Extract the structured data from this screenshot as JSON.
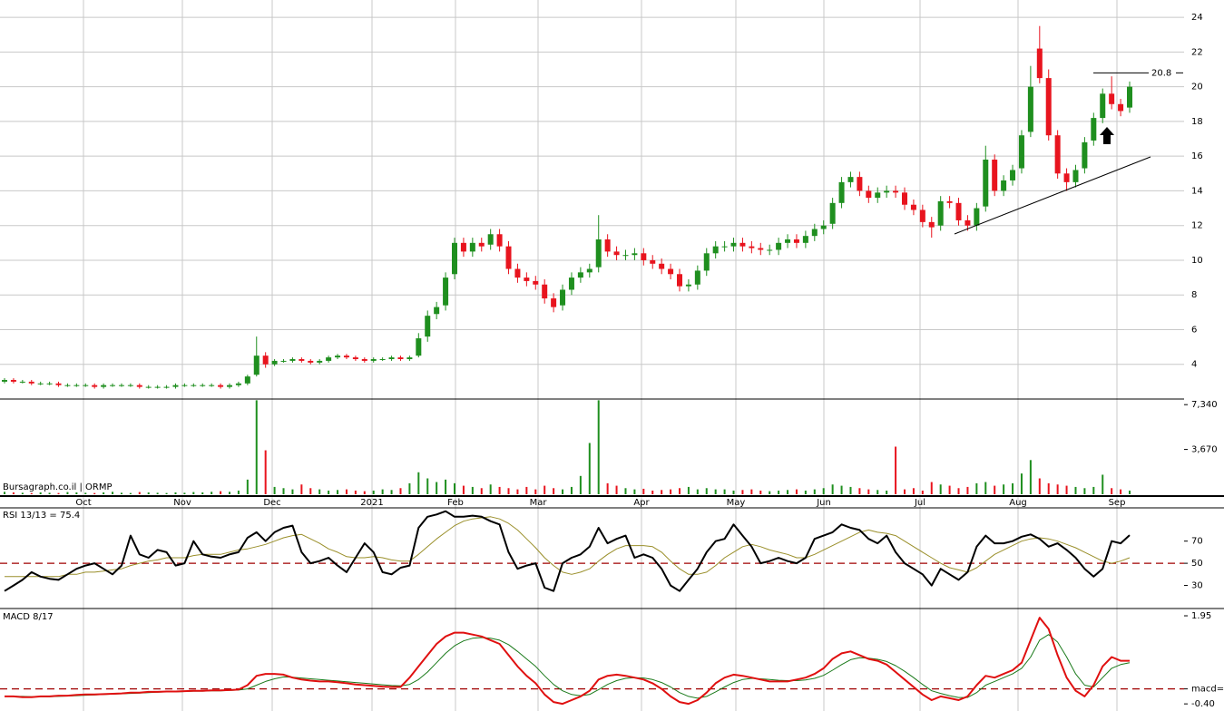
{
  "chart_data": [
    {
      "type": "candlestick",
      "x_labels": [
        "Oct",
        "Nov",
        "Dec",
        "2021",
        "Feb",
        "Mar",
        "Apr",
        "May",
        "Jun",
        "Jul",
        "Aug",
        "Sep"
      ],
      "up_color": "#1f8f1f",
      "down_color": "#e8141e",
      "open": [
        3.0,
        3.1,
        3.0,
        3.0,
        2.9,
        2.9,
        2.9,
        2.8,
        2.8,
        2.8,
        2.8,
        2.7,
        2.8,
        2.8,
        2.8,
        2.8,
        2.7,
        2.7,
        2.7,
        2.7,
        2.8,
        2.8,
        2.8,
        2.8,
        2.8,
        2.7,
        2.8,
        2.9,
        3.4,
        4.5,
        4.0,
        4.2,
        4.2,
        4.3,
        4.2,
        4.1,
        4.2,
        4.4,
        4.5,
        4.4,
        4.3,
        4.2,
        4.3,
        4.3,
        4.4,
        4.3,
        4.5,
        5.6,
        6.9,
        7.4,
        9.2,
        11.0,
        10.5,
        11.0,
        10.9,
        11.5,
        10.8,
        9.5,
        9.0,
        8.8,
        8.6,
        7.8,
        7.4,
        8.3,
        9.0,
        9.3,
        9.6,
        11.2,
        10.5,
        10.3,
        10.3,
        10.4,
        10.0,
        9.8,
        9.5,
        9.2,
        8.5,
        8.6,
        9.4,
        10.4,
        10.8,
        10.8,
        11.0,
        10.8,
        10.7,
        10.6,
        10.6,
        11.0,
        11.2,
        11.0,
        11.4,
        11.8,
        12.1,
        13.3,
        14.5,
        14.8,
        14.0,
        13.6,
        13.9,
        14.0,
        13.9,
        13.2,
        12.9,
        12.2,
        12.0,
        13.4,
        13.3,
        12.3,
        12.0,
        13.1,
        15.8,
        14.0,
        14.6,
        15.3,
        17.4,
        22.2,
        20.5,
        17.2,
        15.0,
        14.5,
        15.3,
        16.9,
        18.2,
        19.6,
        19.0,
        18.8
      ],
      "high": [
        3.2,
        3.2,
        3.1,
        3.1,
        3.0,
        3.0,
        3.0,
        2.9,
        2.9,
        2.9,
        2.9,
        2.9,
        2.9,
        2.9,
        2.9,
        2.9,
        2.8,
        2.8,
        2.8,
        2.9,
        2.9,
        2.9,
        2.9,
        2.9,
        2.9,
        2.9,
        3.0,
        3.4,
        5.6,
        4.7,
        4.3,
        4.3,
        4.4,
        4.4,
        4.3,
        4.3,
        4.5,
        4.6,
        4.6,
        4.5,
        4.4,
        4.4,
        4.4,
        4.5,
        4.5,
        4.5,
        5.8,
        7.1,
        7.6,
        9.3,
        11.3,
        11.3,
        11.3,
        11.3,
        11.8,
        11.8,
        11.1,
        9.8,
        9.3,
        9.1,
        8.9,
        8.1,
        8.6,
        9.3,
        9.6,
        9.8,
        12.6,
        11.5,
        10.8,
        10.6,
        10.7,
        10.7,
        10.3,
        10.1,
        9.8,
        9.5,
        8.9,
        9.7,
        10.7,
        11.1,
        11.1,
        11.3,
        11.3,
        11.1,
        11.0,
        10.9,
        11.3,
        11.5,
        11.5,
        11.7,
        12.1,
        12.3,
        13.6,
        14.8,
        15.1,
        15.1,
        14.3,
        14.2,
        14.3,
        14.3,
        14.2,
        13.5,
        13.2,
        12.5,
        13.7,
        13.7,
        13.6,
        12.6,
        13.3,
        16.6,
        16.1,
        14.9,
        15.5,
        17.5,
        21.2,
        23.5,
        21.0,
        17.5,
        15.3,
        15.5,
        17.1,
        18.5,
        19.9,
        20.6,
        19.3,
        20.3
      ],
      "low": [
        2.9,
        2.9,
        2.9,
        2.8,
        2.8,
        2.8,
        2.7,
        2.7,
        2.7,
        2.7,
        2.6,
        2.6,
        2.7,
        2.7,
        2.7,
        2.6,
        2.6,
        2.6,
        2.6,
        2.6,
        2.7,
        2.7,
        2.7,
        2.7,
        2.6,
        2.6,
        2.7,
        2.8,
        3.3,
        3.8,
        3.9,
        4.1,
        4.1,
        4.1,
        4.0,
        4.0,
        4.1,
        4.3,
        4.3,
        4.2,
        4.1,
        4.1,
        4.2,
        4.2,
        4.2,
        4.2,
        4.4,
        5.3,
        6.6,
        7.1,
        8.9,
        10.2,
        10.2,
        10.5,
        10.6,
        10.5,
        9.2,
        8.7,
        8.5,
        8.3,
        7.5,
        7.0,
        7.1,
        8.0,
        8.7,
        9.0,
        9.3,
        10.2,
        10.0,
        10.0,
        10.0,
        9.7,
        9.5,
        9.2,
        8.9,
        8.2,
        8.2,
        8.3,
        9.1,
        10.1,
        10.5,
        10.5,
        10.5,
        10.4,
        10.3,
        10.3,
        10.3,
        10.7,
        10.7,
        10.7,
        11.1,
        11.5,
        11.8,
        13.0,
        14.2,
        13.7,
        13.3,
        13.3,
        13.6,
        13.6,
        12.9,
        12.6,
        11.9,
        11.3,
        11.7,
        13.0,
        12.0,
        11.7,
        11.7,
        12.8,
        13.7,
        13.7,
        14.3,
        15.0,
        17.1,
        20.2,
        16.9,
        14.7,
        14.0,
        14.2,
        15.0,
        16.6,
        17.9,
        18.7,
        18.3,
        18.5
      ],
      "close": [
        3.1,
        3.0,
        3.0,
        2.9,
        2.9,
        2.9,
        2.8,
        2.8,
        2.8,
        2.8,
        2.7,
        2.8,
        2.8,
        2.8,
        2.8,
        2.7,
        2.7,
        2.7,
        2.7,
        2.8,
        2.8,
        2.8,
        2.8,
        2.8,
        2.7,
        2.8,
        2.9,
        3.3,
        4.5,
        4.0,
        4.2,
        4.2,
        4.3,
        4.2,
        4.1,
        4.2,
        4.4,
        4.5,
        4.4,
        4.3,
        4.2,
        4.3,
        4.3,
        4.4,
        4.3,
        4.4,
        5.5,
        6.8,
        7.3,
        9.0,
        11.0,
        10.5,
        11.0,
        10.8,
        11.5,
        10.8,
        9.5,
        9.0,
        8.8,
        8.6,
        7.8,
        7.3,
        8.3,
        9.0,
        9.3,
        9.5,
        11.2,
        10.5,
        10.3,
        10.3,
        10.4,
        10.0,
        9.8,
        9.5,
        9.2,
        8.5,
        8.6,
        9.4,
        10.4,
        10.8,
        10.8,
        11.0,
        10.8,
        10.7,
        10.6,
        10.6,
        11.0,
        11.2,
        11.0,
        11.4,
        11.8,
        12.0,
        13.3,
        14.5,
        14.8,
        14.0,
        13.6,
        13.9,
        14.0,
        13.9,
        13.2,
        12.9,
        12.2,
        11.9,
        13.4,
        13.3,
        12.3,
        12.0,
        13.0,
        15.8,
        14.0,
        14.6,
        15.2,
        17.2,
        20.0,
        20.5,
        17.2,
        15.0,
        14.5,
        15.2,
        16.8,
        18.2,
        19.6,
        19.0,
        18.6,
        20.0
      ],
      "ylim": [
        2,
        25
      ],
      "yticks": [
        4,
        6,
        8,
        10,
        12,
        14,
        16,
        18,
        20,
        22,
        24
      ],
      "grid": true,
      "resistance_line": 20.8
    },
    {
      "type": "bar",
      "title": "Bursagraph.co.il | ORMP",
      "values": [
        200,
        150,
        120,
        100,
        150,
        120,
        100,
        180,
        150,
        120,
        100,
        150,
        200,
        120,
        100,
        180,
        150,
        120,
        100,
        150,
        120,
        180,
        150,
        200,
        250,
        200,
        300,
        1200,
        7700,
        3600,
        600,
        500,
        400,
        800,
        500,
        400,
        300,
        350,
        400,
        300,
        250,
        300,
        400,
        350,
        500,
        900,
        1800,
        1300,
        1000,
        1200,
        900,
        700,
        600,
        500,
        800,
        600,
        500,
        400,
        600,
        400,
        700,
        500,
        400,
        600,
        1500,
        4200,
        7700,
        900,
        700,
        500,
        400,
        450,
        300,
        350,
        400,
        500,
        600,
        400,
        500,
        400,
        400,
        300,
        350,
        400,
        300,
        250,
        300,
        350,
        400,
        300,
        400,
        500,
        800,
        700,
        600,
        500,
        400,
        350,
        300,
        3900,
        400,
        500,
        300,
        1000,
        800,
        700,
        500,
        600,
        900,
        1000,
        700,
        800,
        900,
        1700,
        2800,
        1300,
        900,
        800,
        700,
        600,
        500,
        600,
        1600,
        500,
        400,
        300
      ],
      "ylim": [
        0,
        7800
      ],
      "yticks": [
        {
          "value": 3670,
          "label": "3,670"
        },
        {
          "value": 7340,
          "label": "7,340"
        }
      ]
    },
    {
      "type": "line",
      "title": "RSI 13/13 = 75.4",
      "series": [
        {
          "color": "#000000",
          "values": [
            25,
            30,
            35,
            42,
            38,
            36,
            35,
            40,
            45,
            48,
            50,
            45,
            40,
            48,
            75,
            58,
            55,
            62,
            60,
            48,
            50,
            70,
            58,
            56,
            55,
            58,
            60,
            73,
            78,
            70,
            78,
            82,
            84,
            60,
            50,
            52,
            55,
            48,
            42,
            55,
            68,
            60,
            42,
            40,
            46,
            48,
            82,
            92,
            94,
            97,
            92,
            92,
            93,
            92,
            88,
            85,
            60,
            45,
            48,
            50,
            28,
            25,
            50,
            55,
            58,
            65,
            82,
            68,
            72,
            75,
            55,
            58,
            55,
            45,
            30,
            25,
            35,
            45,
            60,
            70,
            72,
            85,
            75,
            65,
            50,
            52,
            55,
            52,
            50,
            55,
            72,
            75,
            78,
            85,
            82,
            80,
            72,
            68,
            75,
            60,
            50,
            45,
            40,
            30,
            45,
            40,
            35,
            42,
            65,
            75,
            68,
            68,
            70,
            74,
            76,
            72,
            65,
            68,
            62,
            55,
            45,
            38,
            45,
            70,
            68,
            75.4
          ]
        },
        {
          "color": "#9a8f2a",
          "values": [
            38,
            38,
            38,
            38,
            38,
            38,
            38,
            40,
            40,
            42,
            42,
            43,
            44,
            45,
            48,
            50,
            52,
            53,
            55,
            55,
            55,
            57,
            58,
            58,
            58,
            60,
            62,
            63,
            65,
            67,
            70,
            73,
            75,
            76,
            72,
            68,
            63,
            60,
            56,
            55,
            55,
            56,
            55,
            53,
            52,
            52,
            58,
            65,
            72,
            78,
            84,
            88,
            90,
            91,
            92,
            90,
            86,
            80,
            72,
            64,
            55,
            48,
            42,
            40,
            42,
            45,
            52,
            58,
            63,
            66,
            66,
            66,
            65,
            60,
            52,
            45,
            40,
            40,
            42,
            48,
            55,
            60,
            65,
            67,
            65,
            62,
            60,
            58,
            55,
            55,
            58,
            62,
            66,
            70,
            74,
            78,
            80,
            78,
            77,
            75,
            70,
            65,
            60,
            55,
            50,
            46,
            44,
            42,
            46,
            52,
            58,
            62,
            66,
            70,
            72,
            73,
            72,
            70,
            67,
            64,
            60,
            56,
            52,
            50,
            52,
            55
          ]
        }
      ],
      "ylim": [
        10,
        100
      ],
      "yticks": [
        30,
        50,
        70
      ],
      "reference_line": 50
    },
    {
      "type": "line",
      "title": "MACD 8/17",
      "series": [
        {
          "color": "#e01010",
          "values": [
            -0.2,
            -0.2,
            -0.22,
            -0.22,
            -0.2,
            -0.2,
            -0.18,
            -0.18,
            -0.16,
            -0.15,
            -0.15,
            -0.14,
            -0.13,
            -0.12,
            -0.1,
            -0.1,
            -0.08,
            -0.08,
            -0.07,
            -0.07,
            -0.06,
            -0.05,
            -0.05,
            -0.04,
            -0.04,
            -0.03,
            -0.02,
            0.1,
            0.35,
            0.4,
            0.4,
            0.38,
            0.3,
            0.25,
            0.22,
            0.2,
            0.2,
            0.18,
            0.15,
            0.12,
            0.1,
            0.08,
            0.06,
            0.05,
            0.05,
            0.3,
            0.6,
            0.9,
            1.2,
            1.4,
            1.5,
            1.5,
            1.45,
            1.4,
            1.3,
            1.2,
            0.9,
            0.6,
            0.35,
            0.15,
            -0.15,
            -0.35,
            -0.4,
            -0.3,
            -0.2,
            -0.05,
            0.25,
            0.35,
            0.38,
            0.35,
            0.3,
            0.25,
            0.15,
            0.0,
            -0.2,
            -0.35,
            -0.4,
            -0.3,
            -0.1,
            0.15,
            0.3,
            0.38,
            0.35,
            0.3,
            0.25,
            0.2,
            0.2,
            0.2,
            0.25,
            0.3,
            0.4,
            0.55,
            0.8,
            0.95,
            1.0,
            0.9,
            0.8,
            0.75,
            0.65,
            0.45,
            0.25,
            0.05,
            -0.15,
            -0.3,
            -0.2,
            -0.25,
            -0.3,
            -0.2,
            0.1,
            0.35,
            0.3,
            0.4,
            0.5,
            0.7,
            1.3,
            1.9,
            1.6,
            0.9,
            0.3,
            -0.05,
            -0.2,
            0.1,
            0.6,
            0.85,
            0.75,
            0.75
          ]
        },
        {
          "color": "#1a7a1a",
          "values": [
            -0.2,
            -0.2,
            -0.2,
            -0.21,
            -0.21,
            -0.21,
            -0.2,
            -0.19,
            -0.18,
            -0.17,
            -0.16,
            -0.15,
            -0.14,
            -0.13,
            -0.12,
            -0.11,
            -0.1,
            -0.09,
            -0.08,
            -0.08,
            -0.07,
            -0.06,
            -0.06,
            -0.05,
            -0.05,
            -0.04,
            -0.03,
            0.0,
            0.1,
            0.2,
            0.27,
            0.32,
            0.31,
            0.29,
            0.27,
            0.25,
            0.23,
            0.21,
            0.19,
            0.17,
            0.15,
            0.13,
            0.11,
            0.09,
            0.08,
            0.12,
            0.25,
            0.45,
            0.7,
            0.95,
            1.15,
            1.28,
            1.35,
            1.37,
            1.35,
            1.3,
            1.18,
            1.0,
            0.8,
            0.6,
            0.35,
            0.12,
            -0.05,
            -0.15,
            -0.18,
            -0.15,
            -0.02,
            0.12,
            0.22,
            0.28,
            0.3,
            0.29,
            0.25,
            0.17,
            0.05,
            -0.1,
            -0.2,
            -0.25,
            -0.2,
            -0.08,
            0.05,
            0.17,
            0.25,
            0.28,
            0.27,
            0.25,
            0.23,
            0.22,
            0.22,
            0.24,
            0.28,
            0.36,
            0.5,
            0.65,
            0.78,
            0.83,
            0.82,
            0.79,
            0.73,
            0.62,
            0.47,
            0.3,
            0.12,
            -0.05,
            -0.12,
            -0.18,
            -0.23,
            -0.23,
            -0.1,
            0.1,
            0.2,
            0.3,
            0.4,
            0.55,
            0.85,
            1.3,
            1.45,
            1.25,
            0.85,
            0.4,
            0.1,
            0.05,
            0.3,
            0.55,
            0.65,
            0.7
          ]
        }
      ],
      "ylim": [
        -0.59,
        2.12
      ],
      "yticks": [
        {
          "value": -0.4,
          "label": "-0.40"
        },
        {
          "value": 0,
          "label": "macd=0"
        },
        {
          "value": 1.95,
          "label": "1.95"
        }
      ],
      "reference_line": 0
    }
  ]
}
